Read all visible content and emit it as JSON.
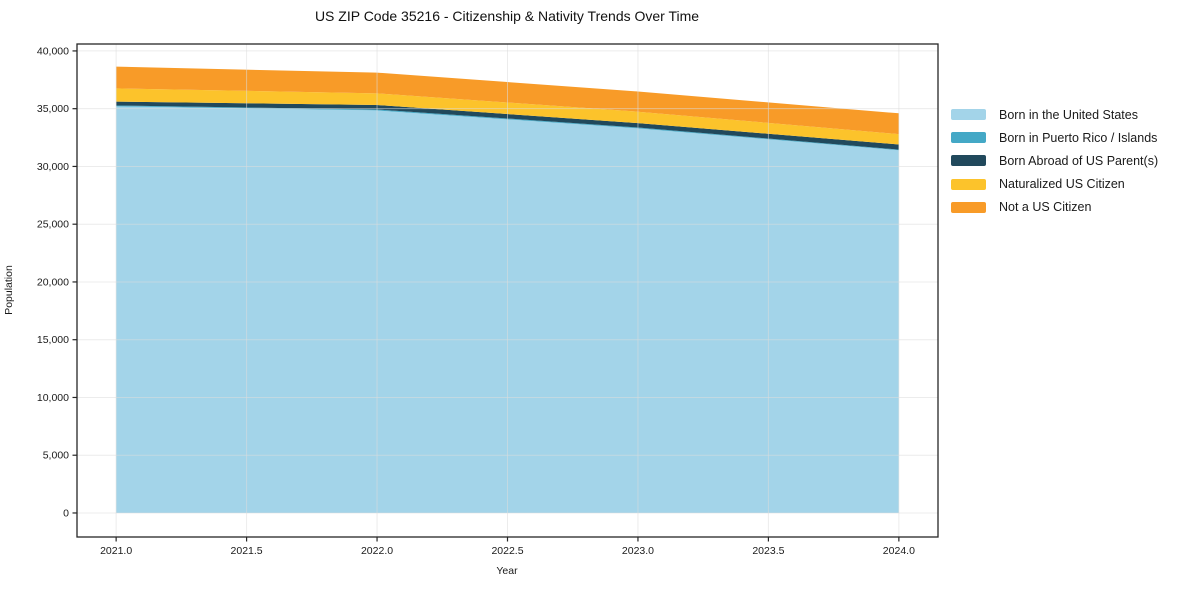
{
  "title": "US ZIP Code 35216 - Citizenship & Nativity Trends Over Time",
  "chart_data": {
    "type": "area",
    "stacked": true,
    "title": "US ZIP Code 35216 - Citizenship & Nativity Trends Over Time",
    "xlabel": "Year",
    "ylabel": "Population",
    "x": [
      2021,
      2022,
      2023,
      2024
    ],
    "series": [
      {
        "name": "Born in the United States",
        "color": "#a3d4e9",
        "values": [
          35200,
          34850,
          33300,
          31400
        ]
      },
      {
        "name": "Born in Puerto Rico / Islands",
        "color": "#44a8c6",
        "values": [
          80,
          80,
          70,
          60
        ]
      },
      {
        "name": "Born Abroad of US Parent(s)",
        "color": "#21495c",
        "values": [
          330,
          390,
          380,
          440
        ]
      },
      {
        "name": "Naturalized US Citizen",
        "color": "#fcc32b",
        "values": [
          1150,
          1010,
          990,
          900
        ]
      },
      {
        "name": "Not a US Citizen",
        "color": "#f89b28",
        "values": [
          1880,
          1790,
          1750,
          1800
        ]
      }
    ],
    "totals": [
      38640,
      38120,
      36490,
      34600
    ],
    "xlim": [
      2020.85,
      2024.15
    ],
    "ylim": [
      -2080,
      40600
    ],
    "xticks": {
      "values": [
        2021.0,
        2021.5,
        2022.0,
        2022.5,
        2023.0,
        2023.5,
        2024.0
      ],
      "labels": [
        "2021.0",
        "2021.5",
        "2022.0",
        "2022.5",
        "2023.0",
        "2023.5",
        "2024.0"
      ]
    },
    "yticks": {
      "values": [
        0,
        5000,
        10000,
        15000,
        20000,
        25000,
        30000,
        35000,
        40000
      ],
      "labels": [
        "0",
        "5,000",
        "10,000",
        "15,000",
        "20,000",
        "25,000",
        "30,000",
        "35,000",
        "40,000"
      ]
    },
    "grid": true,
    "legend_position": "right"
  },
  "colors": {
    "background": "#ffffff",
    "axis": "#262626",
    "grid": "#dcdcdc",
    "text": "#1a1a1a"
  }
}
